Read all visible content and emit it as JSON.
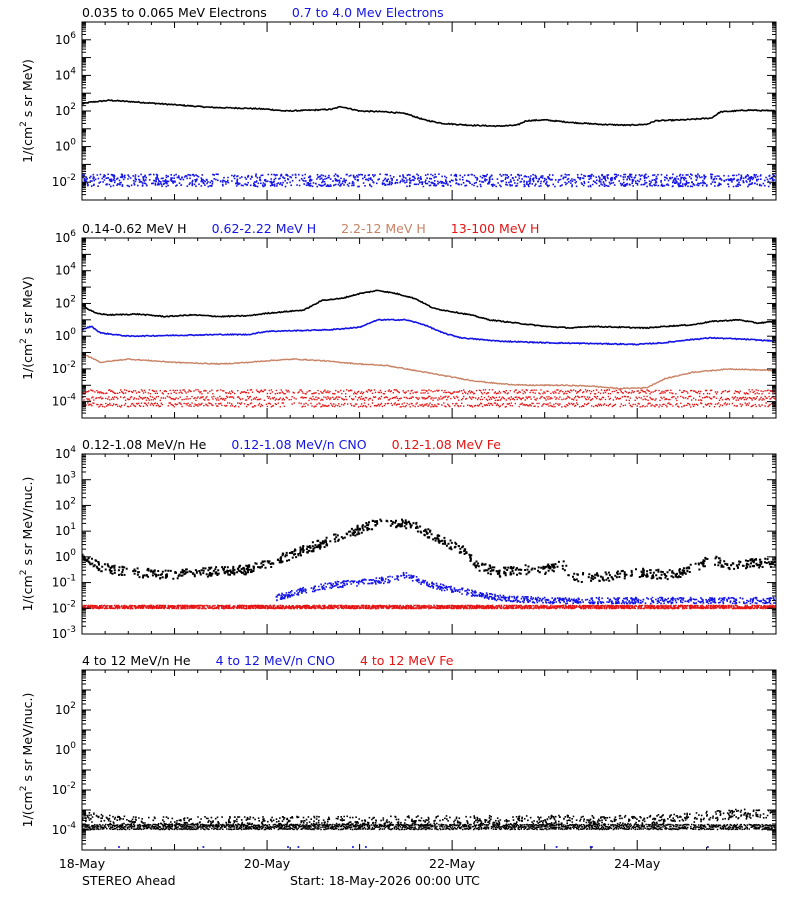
{
  "colors": {
    "black": "#000000",
    "blue": "#1414e6",
    "tan": "#c88264",
    "red": "#e61414"
  },
  "footer": {
    "left": "STEREO Ahead",
    "center": "Start: 18-May-2026 00:00 UTC"
  },
  "x_axis": {
    "unit": "days since 18-May-2026 00:00 UTC",
    "range": [
      0,
      7.5
    ],
    "ticks": [
      {
        "v": 0,
        "label": "18-May"
      },
      {
        "v": 2,
        "label": "20-May"
      },
      {
        "v": 4,
        "label": "22-May"
      },
      {
        "v": 6,
        "label": "24-May"
      }
    ]
  },
  "chart_data": [
    {
      "type": "scatter",
      "y_scale": "log",
      "ylim_exp": [
        -3,
        7
      ],
      "ylabel_pre": "1/(cm",
      "ylabel_sup": "2",
      "ylabel_post": " s sr MeV)",
      "y_ticks": [
        -2,
        0,
        2,
        4,
        6
      ],
      "legend": [
        {
          "text": "0.035 to 0.065 MeV Electrons",
          "color": "#000000"
        },
        {
          "text": "0.7 to 4.0 Mev Electrons",
          "color": "#1414e6"
        }
      ],
      "series": [
        {
          "name": "0.035 to 0.065 MeV Electrons",
          "color": "#000000",
          "style": "line",
          "width": 1.6,
          "points": [
            [
              0,
              2.4
            ],
            [
              0.1,
              2.5
            ],
            [
              0.3,
              2.6
            ],
            [
              0.6,
              2.5
            ],
            [
              1.0,
              2.35
            ],
            [
              1.4,
              2.2
            ],
            [
              1.8,
              2.15
            ],
            [
              2.0,
              2.1
            ],
            [
              2.2,
              2.0
            ],
            [
              2.5,
              2.05
            ],
            [
              2.7,
              2.1
            ],
            [
              2.8,
              2.25
            ],
            [
              3.0,
              2.0
            ],
            [
              3.3,
              1.95
            ],
            [
              3.5,
              1.85
            ],
            [
              3.7,
              1.5
            ],
            [
              3.9,
              1.3
            ],
            [
              4.2,
              1.2
            ],
            [
              4.5,
              1.15
            ],
            [
              4.7,
              1.2
            ],
            [
              4.8,
              1.45
            ],
            [
              5.0,
              1.5
            ],
            [
              5.3,
              1.35
            ],
            [
              5.6,
              1.25
            ],
            [
              5.9,
              1.2
            ],
            [
              6.1,
              1.25
            ],
            [
              6.2,
              1.45
            ],
            [
              6.5,
              1.5
            ],
            [
              6.8,
              1.6
            ],
            [
              6.9,
              1.95
            ],
            [
              7.2,
              2.05
            ],
            [
              7.5,
              2.0
            ]
          ]
        },
        {
          "name": "0.7 to 4.0 Mev Electrons",
          "color": "#1414e6",
          "style": "scatter",
          "size": 1.6,
          "base": -1.9,
          "spread": 0.35,
          "points": []
        }
      ]
    },
    {
      "type": "scatter",
      "y_scale": "log",
      "ylim_exp": [
        -5,
        6
      ],
      "ylabel_pre": "1/(cm",
      "ylabel_sup": "2",
      "ylabel_post": " s sr MeV)",
      "y_ticks": [
        -4,
        -2,
        0,
        2,
        4,
        6
      ],
      "legend": [
        {
          "text": "0.14-0.62 MeV H",
          "color": "#000000"
        },
        {
          "text": "0.62-2.22 MeV H",
          "color": "#1414e6"
        },
        {
          "text": "2.2-12 MeV H",
          "color": "#c88264"
        },
        {
          "text": "13-100 MeV H",
          "color": "#e61414"
        }
      ],
      "series": [
        {
          "name": "0.14-0.62 MeV H",
          "color": "#000000",
          "style": "line",
          "width": 1.6,
          "points": [
            [
              0,
              2.0
            ],
            [
              0.05,
              1.7
            ],
            [
              0.15,
              1.4
            ],
            [
              0.3,
              1.3
            ],
            [
              0.6,
              1.35
            ],
            [
              0.9,
              1.2
            ],
            [
              1.2,
              1.3
            ],
            [
              1.5,
              1.2
            ],
            [
              1.8,
              1.25
            ],
            [
              2.0,
              1.4
            ],
            [
              2.2,
              1.5
            ],
            [
              2.4,
              1.6
            ],
            [
              2.6,
              2.2
            ],
            [
              2.8,
              2.3
            ],
            [
              3.0,
              2.6
            ],
            [
              3.2,
              2.8
            ],
            [
              3.4,
              2.6
            ],
            [
              3.6,
              2.3
            ],
            [
              3.8,
              1.7
            ],
            [
              4.0,
              1.5
            ],
            [
              4.2,
              1.3
            ],
            [
              4.4,
              1.0
            ],
            [
              4.7,
              0.8
            ],
            [
              5.0,
              0.6
            ],
            [
              5.3,
              0.5
            ],
            [
              5.5,
              0.6
            ],
            [
              5.8,
              0.55
            ],
            [
              6.1,
              0.5
            ],
            [
              6.3,
              0.6
            ],
            [
              6.6,
              0.7
            ],
            [
              6.8,
              0.9
            ],
            [
              7.1,
              1.0
            ],
            [
              7.3,
              0.8
            ],
            [
              7.5,
              0.9
            ]
          ]
        },
        {
          "name": "0.62-2.22 MeV H",
          "color": "#1414e6",
          "style": "line",
          "width": 1.6,
          "points": [
            [
              0,
              0.4
            ],
            [
              0.1,
              0.6
            ],
            [
              0.2,
              0.2
            ],
            [
              0.5,
              0.0
            ],
            [
              1.0,
              0.05
            ],
            [
              1.5,
              0.1
            ],
            [
              1.8,
              0.1
            ],
            [
              2.0,
              0.3
            ],
            [
              2.4,
              0.35
            ],
            [
              2.7,
              0.4
            ],
            [
              3.0,
              0.55
            ],
            [
              3.2,
              1.0
            ],
            [
              3.5,
              1.0
            ],
            [
              3.7,
              0.7
            ],
            [
              3.9,
              0.2
            ],
            [
              4.1,
              -0.1
            ],
            [
              4.5,
              -0.3
            ],
            [
              5.0,
              -0.4
            ],
            [
              5.5,
              -0.45
            ],
            [
              6.0,
              -0.5
            ],
            [
              6.3,
              -0.4
            ],
            [
              6.5,
              -0.25
            ],
            [
              6.8,
              -0.1
            ],
            [
              7.2,
              -0.2
            ],
            [
              7.5,
              -0.3
            ]
          ]
        },
        {
          "name": "2.2-12 MeV H",
          "color": "#c88264",
          "style": "line",
          "width": 1.4,
          "points": [
            [
              0,
              -1.1
            ],
            [
              0.1,
              -1.3
            ],
            [
              0.2,
              -1.6
            ],
            [
              0.5,
              -1.4
            ],
            [
              1.0,
              -1.6
            ],
            [
              1.5,
              -1.7
            ],
            [
              1.8,
              -1.6
            ],
            [
              2.0,
              -1.5
            ],
            [
              2.3,
              -1.4
            ],
            [
              2.6,
              -1.5
            ],
            [
              3.0,
              -1.7
            ],
            [
              3.3,
              -1.8
            ],
            [
              3.6,
              -2.1
            ],
            [
              3.9,
              -2.4
            ],
            [
              4.2,
              -2.7
            ],
            [
              4.5,
              -2.9
            ],
            [
              4.8,
              -3.0
            ],
            [
              5.2,
              -3.0
            ],
            [
              5.5,
              -3.05
            ],
            [
              5.8,
              -3.2
            ],
            [
              6.1,
              -3.15
            ],
            [
              6.3,
              -2.6
            ],
            [
              6.6,
              -2.2
            ],
            [
              7.0,
              -2.0
            ],
            [
              7.5,
              -2.1
            ]
          ]
        },
        {
          "name": "13-100 MeV H",
          "color": "#e61414",
          "style": "band",
          "size": 1.4,
          "base": -3.8,
          "spread": 0.25,
          "points": []
        }
      ]
    },
    {
      "type": "scatter",
      "y_scale": "log",
      "ylim_exp": [
        -3,
        4
      ],
      "ylabel_pre": "1/(cm",
      "ylabel_sup": "2",
      "ylabel_post": " s sr MeV/nuc.)",
      "y_ticks": [
        -3,
        -2,
        -1,
        0,
        1,
        2,
        3,
        4
      ],
      "tick_style": "plain",
      "legend": [
        {
          "text": "0.12-1.08 MeV/n He",
          "color": "#000000"
        },
        {
          "text": "0.12-1.08 MeV/n CNO",
          "color": "#1414e6"
        },
        {
          "text": "0.12-1.08 MeV Fe",
          "color": "#e61414"
        }
      ],
      "series": [
        {
          "name": "0.12-1.08 MeV/n He",
          "color": "#000000",
          "style": "scatter",
          "size": 2.0,
          "spread": 0.18,
          "points": [
            [
              0,
              0.0
            ],
            [
              0.2,
              -0.4
            ],
            [
              0.5,
              -0.6
            ],
            [
              1.0,
              -0.7
            ],
            [
              1.5,
              -0.55
            ],
            [
              1.8,
              -0.5
            ],
            [
              2.0,
              -0.3
            ],
            [
              2.2,
              0.0
            ],
            [
              2.5,
              0.4
            ],
            [
              2.8,
              0.8
            ],
            [
              3.1,
              1.2
            ],
            [
              3.3,
              1.35
            ],
            [
              3.6,
              1.2
            ],
            [
              3.9,
              0.6
            ],
            [
              4.1,
              0.3
            ],
            [
              4.3,
              -0.4
            ],
            [
              4.5,
              -0.6
            ],
            [
              4.8,
              -0.5
            ],
            [
              5.0,
              -0.5
            ],
            [
              5.2,
              -0.3
            ],
            [
              5.3,
              -0.8
            ],
            [
              5.6,
              -0.8
            ],
            [
              6.0,
              -0.6
            ],
            [
              6.3,
              -0.7
            ],
            [
              6.5,
              -0.6
            ],
            [
              6.8,
              -0.1
            ],
            [
              7.0,
              -0.3
            ],
            [
              7.5,
              -0.2
            ]
          ]
        },
        {
          "name": "0.12-1.08 MeV/n CNO",
          "color": "#1414e6",
          "style": "scatter",
          "size": 1.6,
          "spread": 0.12,
          "points": [
            [
              2.1,
              -1.6
            ],
            [
              2.4,
              -1.3
            ],
            [
              2.7,
              -1.1
            ],
            [
              3.0,
              -1.0
            ],
            [
              3.3,
              -0.9
            ],
            [
              3.5,
              -0.7
            ],
            [
              3.7,
              -1.0
            ],
            [
              3.9,
              -1.2
            ],
            [
              4.2,
              -1.4
            ],
            [
              4.5,
              -1.6
            ],
            [
              5.0,
              -1.7
            ],
            [
              6.0,
              -1.7
            ],
            [
              7.0,
              -1.7
            ],
            [
              7.5,
              -1.7
            ]
          ]
        },
        {
          "name": "0.12-1.08 MeV Fe",
          "color": "#e61414",
          "style": "band",
          "size": 1.6,
          "base": -1.95,
          "spread": 0.03,
          "points": []
        }
      ]
    },
    {
      "type": "scatter",
      "y_scale": "log",
      "ylim_exp": [
        -5,
        4
      ],
      "ylabel_pre": "1/(cm",
      "ylabel_sup": "2",
      "ylabel_post": " s sr MeV/nuc.)",
      "y_ticks": [
        -4,
        -2,
        0,
        2
      ],
      "legend": [
        {
          "text": "4 to 12 MeV/n He",
          "color": "#000000"
        },
        {
          "text": "4 to 12 MeV/n CNO",
          "color": "#1414e6"
        },
        {
          "text": "4 to 12 MeV Fe",
          "color": "#e61414"
        }
      ],
      "series": [
        {
          "name": "4 to 12 MeV/n He",
          "color": "#000000",
          "style": "band",
          "size": 1.5,
          "base": -3.85,
          "spread": 0.06,
          "points": []
        },
        {
          "name": "4 to 12 MeV/n He",
          "color": "#000000",
          "style": "scatter",
          "size": 1.6,
          "spread": 0.25,
          "points": [
            [
              0,
              -3.3
            ],
            [
              0.3,
              -3.5
            ],
            [
              0.6,
              -3.6
            ],
            [
              0.8,
              -3.6
            ],
            [
              6.2,
              -3.5
            ],
            [
              6.5,
              -3.4
            ],
            [
              6.8,
              -3.3
            ],
            [
              7.1,
              -3.2
            ],
            [
              7.5,
              -3.2
            ]
          ]
        },
        {
          "name": "4 to 12 MeV/n CNO",
          "color": "#1414e6",
          "style": "sparse",
          "size": 1.8,
          "base": -4.85,
          "points": []
        }
      ]
    }
  ]
}
